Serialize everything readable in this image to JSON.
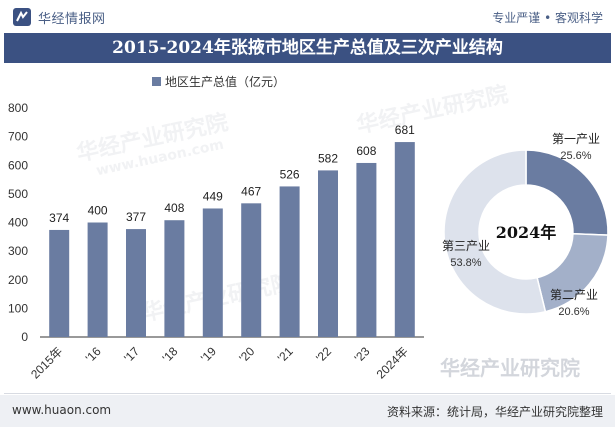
{
  "header": {
    "logo_text": "华经情报网",
    "tagline": "专业严谨 • 客观科学",
    "title": "2015-2024年张掖市地区生产总值及三次产业结构"
  },
  "footer": {
    "url": "www.huaon.com",
    "source": "资料来源：统计局，华经产业研究院整理"
  },
  "watermarks": [
    "华经产业研究院",
    "www.huaon.com"
  ],
  "bottom_watermark": "华经产业研究院",
  "colors": {
    "bar": "#6a7ca1",
    "title_bg": "#3b5182",
    "primary": "#6a7ca1",
    "secondary": "#a3b0c9",
    "tertiary": "#dde2ec"
  },
  "chart_data": [
    {
      "type": "bar",
      "title": "",
      "legend": [
        "地区生产总值（亿元）"
      ],
      "categories": [
        "2015年",
        "'16",
        "'17",
        "'18",
        "'19",
        "'20",
        "'21",
        "'22",
        "'23",
        "2024年"
      ],
      "values": [
        374,
        400,
        377,
        408,
        449,
        467,
        526,
        582,
        608,
        681
      ],
      "ylim": [
        0,
        800
      ],
      "yticks": [
        0,
        100,
        200,
        300,
        400,
        500,
        600,
        700,
        800
      ],
      "xlabel": "",
      "ylabel": ""
    },
    {
      "type": "pie",
      "center_label": "2024年",
      "slices": [
        {
          "name": "第一产业",
          "value": 25.6,
          "label": "25.6%"
        },
        {
          "name": "第二产业",
          "value": 20.6,
          "label": "20.6%"
        },
        {
          "name": "第三产业",
          "value": 53.8,
          "label": "53.8%"
        }
      ]
    }
  ]
}
